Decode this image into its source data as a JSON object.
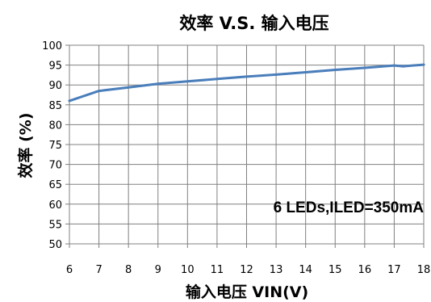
{
  "chart_data": {
    "type": "line",
    "title": "效率 V.S. 输入电压",
    "xlabel": "输入电压 VIN(V)",
    "ylabel": "效率 (%)",
    "xlim": [
      6,
      18
    ],
    "ylim": [
      50,
      100
    ],
    "xticks": [
      "6",
      "7",
      "8",
      "9",
      "10",
      "11",
      "12",
      "13",
      "14",
      "15",
      "16",
      "17",
      "18"
    ],
    "yticks": [
      "50",
      "55",
      "60",
      "65",
      "70",
      "75",
      "80",
      "85",
      "90",
      "95",
      "100"
    ],
    "grid": true,
    "annotation": "6 LEDs,ILED=350mA",
    "series": [
      {
        "color": "#4a7ebb",
        "x": [
          6,
          7,
          8,
          9,
          10,
          11,
          12,
          13,
          14,
          15,
          16,
          17,
          17.3,
          18
        ],
        "y": [
          86,
          88.5,
          89.4,
          90.3,
          90.9,
          91.5,
          92.1,
          92.6,
          93.2,
          93.8,
          94.3,
          94.9,
          94.7,
          95.1
        ]
      }
    ]
  }
}
